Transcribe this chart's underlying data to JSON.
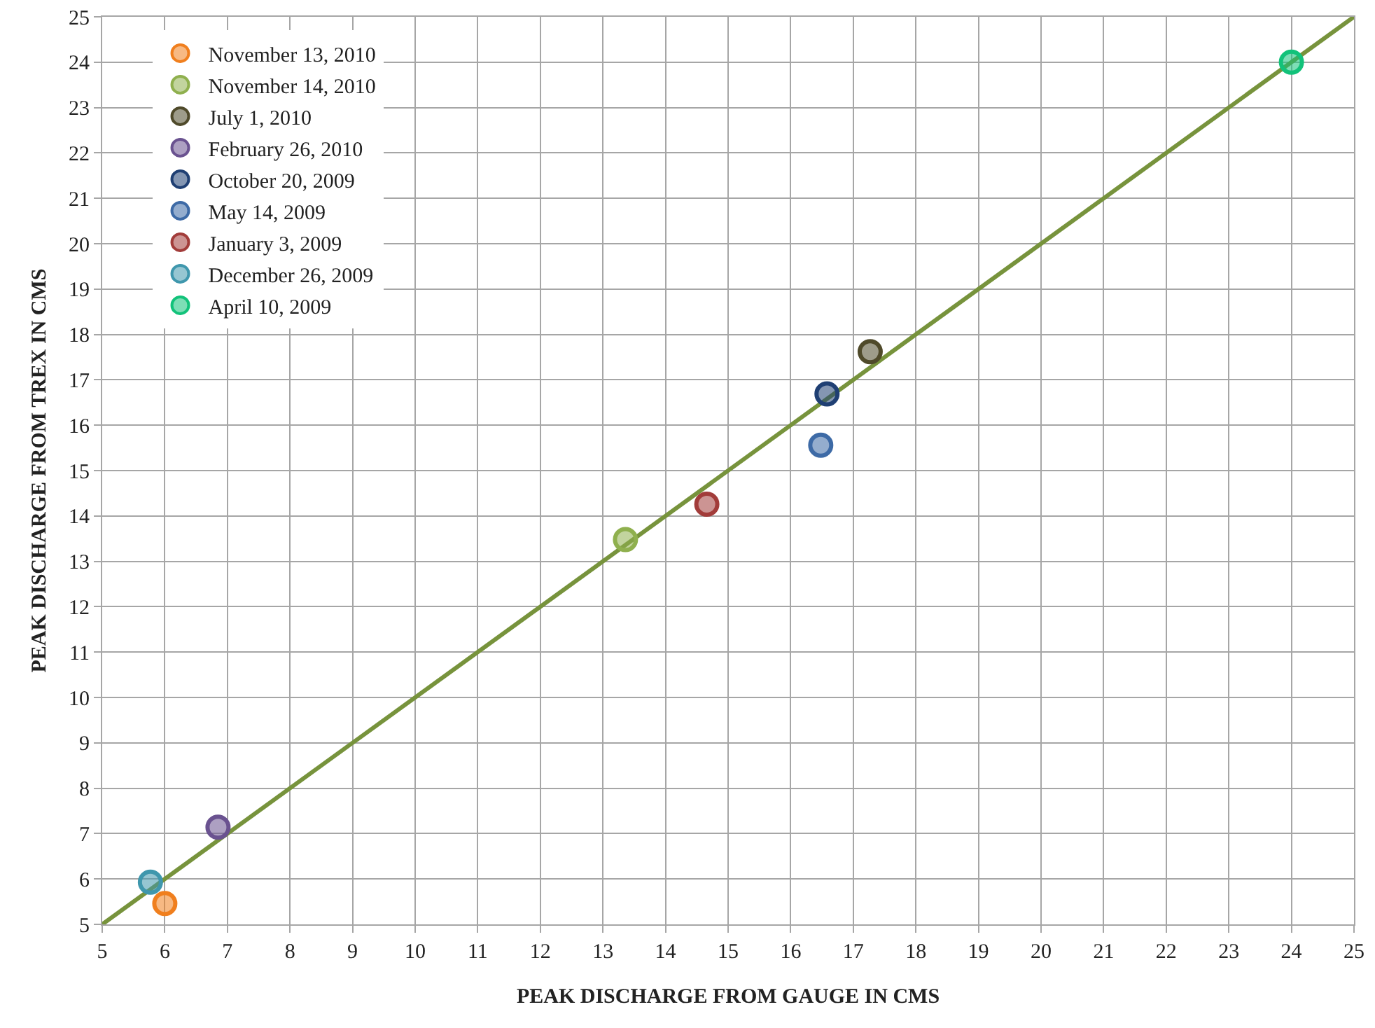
{
  "chart_data": {
    "type": "scatter",
    "xlabel": "PEAK DISCHARGE FROM GAUGE IN CMS",
    "ylabel": "PEAK DISCHARGE FROM TREX IN CMS",
    "xlim": [
      5,
      25
    ],
    "ylim": [
      5,
      25
    ],
    "xticks": [
      5,
      6,
      7,
      8,
      9,
      10,
      11,
      12,
      13,
      14,
      15,
      16,
      17,
      18,
      19,
      20,
      21,
      22,
      23,
      24,
      25
    ],
    "yticks": [
      5,
      6,
      7,
      8,
      9,
      10,
      11,
      12,
      13,
      14,
      15,
      16,
      17,
      18,
      19,
      20,
      21,
      22,
      23,
      24,
      25
    ],
    "grid": true,
    "legend": "top left",
    "marker": "circle",
    "series": [
      {
        "name": "November 13, 2010",
        "color": "#f07f1e",
        "x": [
          6.0
        ],
        "values": [
          5.46
        ]
      },
      {
        "name": "November 14, 2010",
        "color": "#8fb04e",
        "x": [
          13.36
        ],
        "values": [
          13.48
        ]
      },
      {
        "name": "July 1, 2010",
        "color": "#4f4a2a",
        "x": [
          17.27
        ],
        "values": [
          17.62
        ]
      },
      {
        "name": "February 26, 2010",
        "color": "#6a5290",
        "x": [
          6.85
        ],
        "values": [
          7.14
        ]
      },
      {
        "name": "October 20, 2009",
        "color": "#1f3f73",
        "x": [
          16.58
        ],
        "values": [
          16.69
        ]
      },
      {
        "name": "May 14, 2009",
        "color": "#3d6aa6",
        "x": [
          16.48
        ],
        "values": [
          15.56
        ]
      },
      {
        "name": "January 3, 2009",
        "color": "#a23c3a",
        "x": [
          14.66
        ],
        "values": [
          14.26
        ]
      },
      {
        "name": "December 26, 2009",
        "color": "#3f97ad",
        "x": [
          5.77
        ],
        "values": [
          5.93
        ]
      },
      {
        "name": "April 10, 2009",
        "color": "#12c27a",
        "x": [
          24
        ],
        "values": [
          24
        ]
      },
      {
        "type": "line",
        "color": "#77933c",
        "line_style": "solid",
        "marker": "none",
        "x": [
          5,
          25
        ],
        "values": [
          5,
          25
        ]
      }
    ]
  }
}
